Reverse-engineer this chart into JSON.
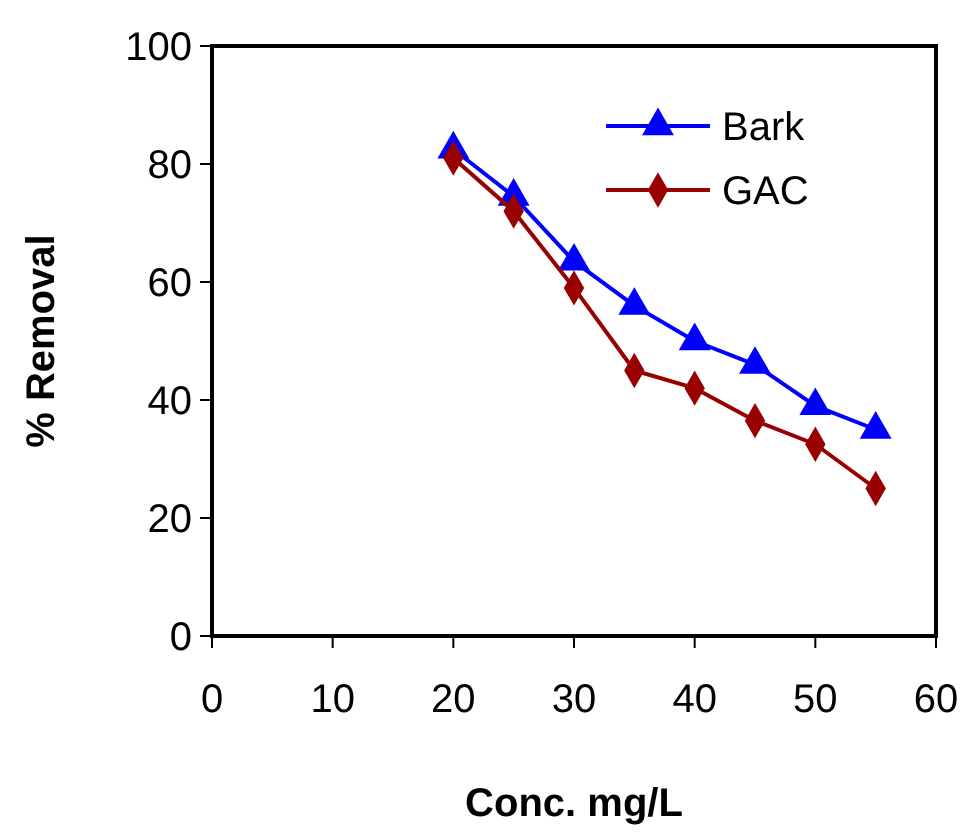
{
  "chart_data": {
    "type": "line",
    "xlabel": "Conc. mg/L",
    "ylabel": "% Removal",
    "xlim": [
      0,
      60
    ],
    "xticks": [
      0,
      10,
      20,
      30,
      40,
      50,
      60
    ],
    "ylim": [
      0,
      100
    ],
    "yticks": [
      0,
      20,
      40,
      60,
      80,
      100
    ],
    "legend": "top right",
    "grid": false,
    "series": [
      {
        "name": "Bark",
        "color": "#0000ff",
        "marker": "triangle",
        "x": [
          20,
          25,
          30,
          35,
          40,
          45,
          50,
          55
        ],
        "values": [
          82.5,
          74.5,
          63.5,
          56,
          50,
          46,
          39,
          35
        ]
      },
      {
        "name": "GAC",
        "color": "#990000",
        "marker": "diamond",
        "x": [
          20,
          25,
          30,
          35,
          40,
          45,
          50,
          55
        ],
        "values": [
          81,
          72,
          59,
          45,
          42,
          36.5,
          32.5,
          25
        ]
      }
    ]
  }
}
